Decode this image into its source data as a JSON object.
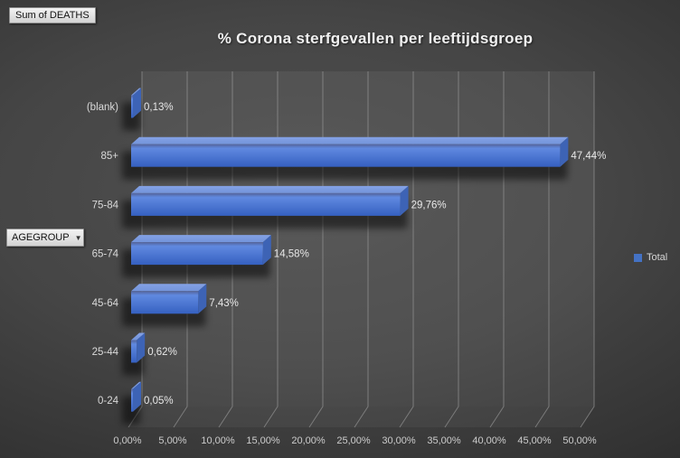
{
  "pivot": {
    "value_button": "Sum of DEATHS",
    "axis_button": "AGEGROUP",
    "axis_button_arrow": "▼"
  },
  "chart_data": {
    "type": "bar",
    "orientation": "horizontal",
    "style": "3d",
    "title": "% Corona sterfgevallen per leeftijdsgroep",
    "categories_top_to_bottom": [
      "(blank)",
      "85+",
      "75-84",
      "65-74",
      "45-64",
      "25-44",
      "0-24"
    ],
    "values": [
      0.13,
      47.44,
      29.76,
      14.58,
      7.43,
      0.62,
      0.05
    ],
    "value_labels": [
      "0,13%",
      "47,44%",
      "29,76%",
      "14,58%",
      "7,43%",
      "0,62%",
      "0,05%"
    ],
    "x_ticks": [
      "0,00%",
      "5,00%",
      "10,00%",
      "15,00%",
      "20,00%",
      "25,00%",
      "30,00%",
      "35,00%",
      "40,00%",
      "45,00%",
      "50,00%"
    ],
    "xlim": [
      0,
      50
    ],
    "grid": true,
    "legend": {
      "position": "right",
      "entries": [
        {
          "label": "Total",
          "color": "#4472C4"
        }
      ]
    },
    "colors": {
      "bar_front_top": "#6089e0",
      "bar_front_bottom": "#3560c0",
      "bar_top_face": "#7394da",
      "bar_end_face": "#3d63b5",
      "bar_edge": "#54639a",
      "gridline": "#9a9a9a",
      "tick_text": "#cccccc",
      "category_text": "#d9d9d9",
      "value_text": "#e8e8e8",
      "title_text": "#f1f1f1"
    }
  }
}
